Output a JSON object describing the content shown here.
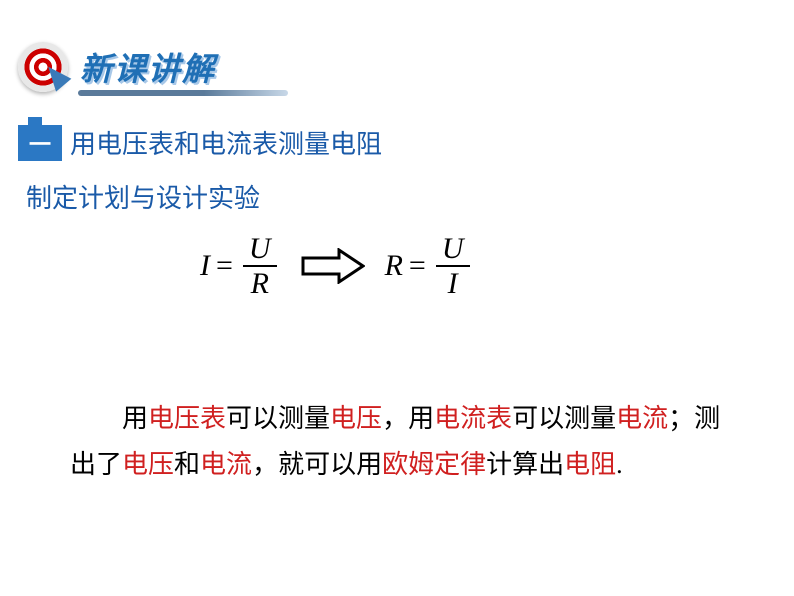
{
  "header": {
    "title": "新课讲解",
    "title_color": "#1f6fb5",
    "underline_gradient_from": "#5a7a9a",
    "underline_gradient_to": "#c8d8e8"
  },
  "section": {
    "label_icon_bg": "#2b78c4",
    "label_text": "一",
    "title": "用电压表和电流表测量电阻",
    "title_color": "#1a5aa8",
    "subtitle": "制定计划与设计实验",
    "subtitle_color": "#1a5aa8"
  },
  "formula": {
    "left": {
      "lhs": "I",
      "num": "U",
      "den": "R"
    },
    "arrow": {
      "stroke": "#000000",
      "stroke_width": 3,
      "width": 64,
      "height": 36
    },
    "right": {
      "lhs": "R",
      "num": "U",
      "den": "I"
    },
    "font_family": "Times New Roman",
    "font_style": "italic",
    "font_size": 30,
    "text_color": "#000000"
  },
  "paragraph": {
    "parts": [
      {
        "t": "用",
        "c": "black"
      },
      {
        "t": "电压表",
        "c": "red"
      },
      {
        "t": "可以测量",
        "c": "black"
      },
      {
        "t": "电压",
        "c": "red"
      },
      {
        "t": "，用",
        "c": "black"
      },
      {
        "t": "电流表",
        "c": "red"
      },
      {
        "t": "可以测量",
        "c": "black"
      },
      {
        "t": "电流",
        "c": "red"
      },
      {
        "t": "；测出了",
        "c": "black"
      },
      {
        "t": "电压",
        "c": "red"
      },
      {
        "t": "和",
        "c": "black"
      },
      {
        "t": "电流",
        "c": "red"
      },
      {
        "t": "，就可以用",
        "c": "black"
      },
      {
        "t": "欧姆定律",
        "c": "red"
      },
      {
        "t": "计算出",
        "c": "black"
      },
      {
        "t": "电阻",
        "c": "red"
      },
      {
        "t": ".",
        "c": "black"
      }
    ],
    "red_color": "#d02020",
    "font_size": 26,
    "line_height": 1.75
  }
}
